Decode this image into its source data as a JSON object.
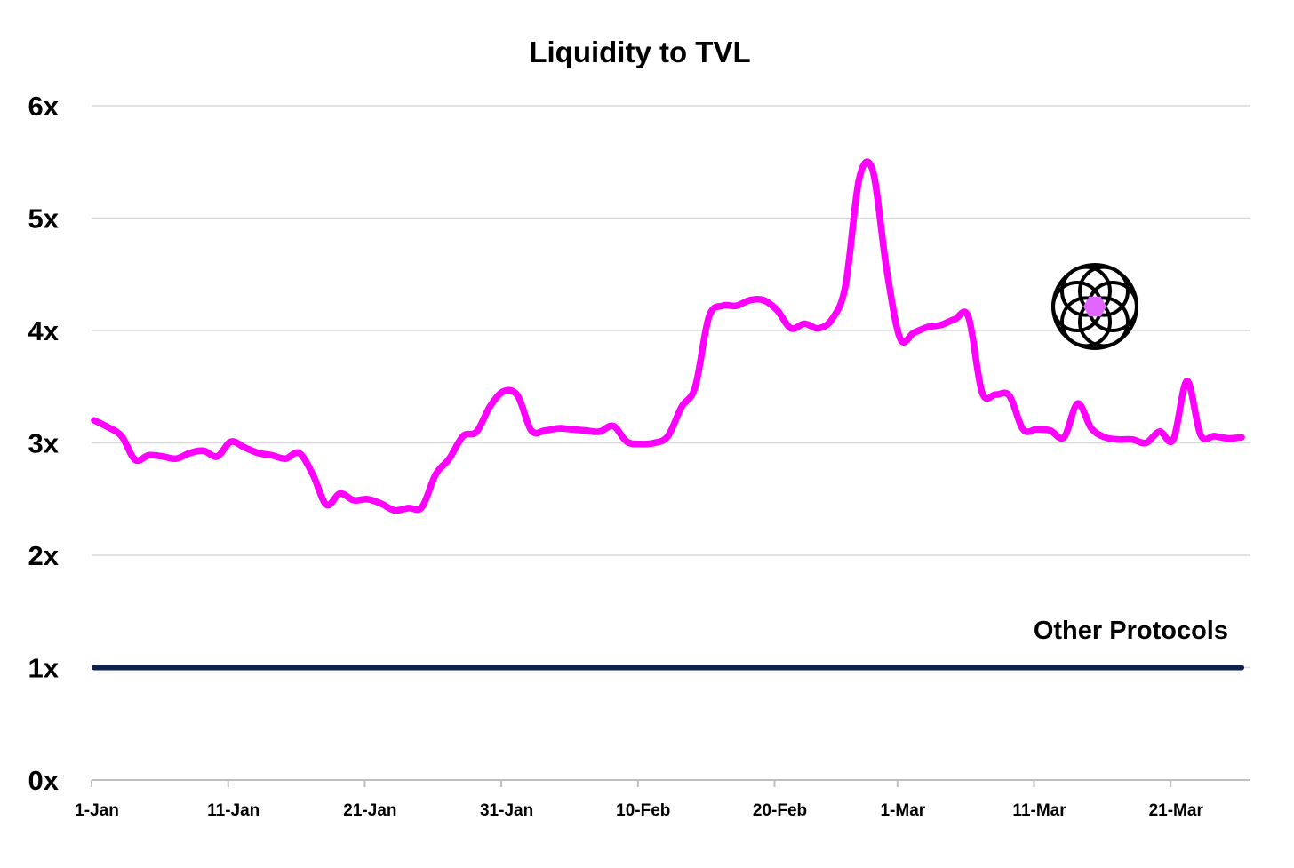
{
  "chart_data": {
    "type": "line",
    "title": "Liquidity to TVL",
    "xlabel": "",
    "ylabel": "",
    "ylim": [
      0,
      6
    ],
    "xlim_days": [
      0,
      84
    ],
    "y_ticks": [
      0,
      1,
      2,
      3,
      4,
      5,
      6
    ],
    "y_tick_labels": [
      "0x",
      "1x",
      "2x",
      "3x",
      "4x",
      "5x",
      "6x"
    ],
    "x_ticks": [
      0,
      10,
      20,
      30,
      40,
      50,
      59,
      69,
      79
    ],
    "x_tick_labels": [
      "1-Jan",
      "11-Jan",
      "21-Jan",
      "31-Jan",
      "10-Feb",
      "20-Feb",
      "1-Mar",
      "11-Mar",
      "21-Mar"
    ],
    "grid": true,
    "colors": {
      "main": "#ff00ff",
      "baseline": "#0c2252",
      "grid": "#d9d9d9",
      "axis": "#bfbfbf"
    },
    "series": [
      {
        "name": "",
        "color": "#ff00ff",
        "x": [
          0,
          1,
          2,
          3,
          4,
          5,
          6,
          7,
          8,
          9,
          10,
          11,
          12,
          13,
          14,
          15,
          16,
          17,
          18,
          19,
          20,
          21,
          22,
          23,
          24,
          25,
          26,
          27,
          28,
          29,
          30,
          31,
          32,
          33,
          34,
          35,
          36,
          37,
          38,
          39,
          40,
          41,
          42,
          43,
          44,
          45,
          46,
          47,
          48,
          49,
          50,
          51,
          52,
          53,
          54,
          55,
          56,
          57,
          58,
          59,
          60,
          61,
          62,
          63,
          64,
          65,
          66,
          67,
          68,
          69,
          70,
          71,
          72,
          73,
          74,
          75,
          76,
          77,
          78,
          79,
          80,
          81,
          82,
          83,
          84
        ],
        "y": [
          3.2,
          3.14,
          3.06,
          2.85,
          2.89,
          2.88,
          2.86,
          2.91,
          2.93,
          2.88,
          3.01,
          2.96,
          2.91,
          2.89,
          2.86,
          2.91,
          2.72,
          2.45,
          2.55,
          2.49,
          2.5,
          2.46,
          2.4,
          2.42,
          2.43,
          2.72,
          2.86,
          3.06,
          3.1,
          3.33,
          3.46,
          3.42,
          3.11,
          3.11,
          3.13,
          3.12,
          3.11,
          3.1,
          3.15,
          3.01,
          2.99,
          3.0,
          3.06,
          3.32,
          3.5,
          4.12,
          4.22,
          4.22,
          4.27,
          4.27,
          4.18,
          4.02,
          4.06,
          4.02,
          4.1,
          4.4,
          5.35,
          5.42,
          4.55,
          3.93,
          3.98,
          4.03,
          4.05,
          4.1,
          4.12,
          3.45,
          3.43,
          3.42,
          3.12,
          3.12,
          3.11,
          3.05,
          3.35,
          3.13,
          3.05,
          3.03,
          3.03,
          3.0,
          3.1,
          3.03,
          3.55,
          3.07,
          3.06,
          3.04,
          3.05
        ]
      },
      {
        "name": "Other Protocols",
        "color": "#0c2252",
        "x": [
          0,
          84
        ],
        "y": [
          1,
          1
        ]
      }
    ],
    "annotations": [
      {
        "text": "Other Protocols",
        "anchor": "above baseline, right"
      }
    ],
    "logo": {
      "icon": "protocol-logo-icon",
      "accent": "#e066ff"
    }
  }
}
